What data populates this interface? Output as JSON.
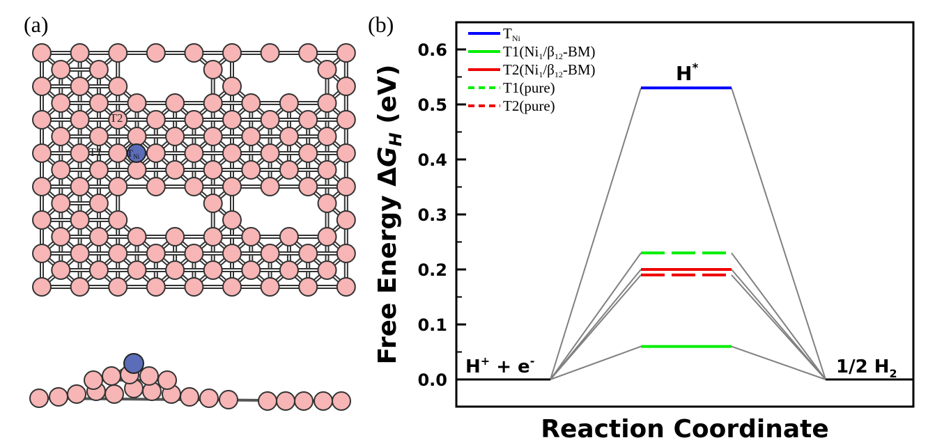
{
  "panels": {
    "a_label": "(a)",
    "b_label": "(b)"
  },
  "structure": {
    "site_T2": "T2",
    "site_T1": "T1",
    "site_TNi": "T",
    "site_TNi_sub": "Ni",
    "colors": {
      "boron": "#f7b5b5",
      "nickel": "#5b6cb8",
      "bond": "#333333"
    }
  },
  "chart_data": {
    "type": "energy-diagram",
    "ylabel_prefix": "Free Energy ",
    "ylabel_delta": "Δ",
    "ylabel_G": "G",
    "ylabel_sub": "H",
    "ylabel_unit": " (eV)",
    "xlabel": "Reaction Coordinate",
    "ylim": [
      0.0,
      0.65
    ],
    "yticks": [
      0.0,
      0.1,
      0.2,
      0.3,
      0.4,
      0.5,
      0.6
    ],
    "ytick_labels": [
      "0.0",
      "0.1",
      "0.2",
      "0.3",
      "0.4",
      "0.5",
      "0.6"
    ],
    "states": [
      "H⁺ + e⁻",
      "H*",
      "1/2 H₂"
    ],
    "state_labels": {
      "initial_main": "H",
      "initial_sup1": "+",
      "initial_mid": " + e",
      "initial_sup2": "-",
      "middle_main": "H",
      "middle_sup": "*",
      "final_main": "1/2 H",
      "final_sub": "2"
    },
    "series": [
      {
        "name": "T_Ni",
        "values": [
          0.0,
          0.53,
          0.0
        ],
        "color": "#0000ff",
        "dashed": false
      },
      {
        "name": "T1(Ni1/β12-BM)",
        "values": [
          0.0,
          0.06,
          0.0
        ],
        "color": "#00ee00",
        "dashed": false
      },
      {
        "name": "T2(Ni1/β12-BM)",
        "values": [
          0.0,
          0.2,
          0.0
        ],
        "color": "#ee0000",
        "dashed": false
      },
      {
        "name": "T1(pure)",
        "values": [
          0.0,
          0.23,
          0.0
        ],
        "color": "#00ee00",
        "dashed": true
      },
      {
        "name": "T2(pure)",
        "values": [
          0.0,
          0.19,
          0.0
        ],
        "color": "#ee0000",
        "dashed": true
      }
    ],
    "legend": {
      "placement": "top-left",
      "entries": [
        {
          "main": "T",
          "sub": "Ni",
          "color": "#0000ff",
          "dashed": false
        },
        {
          "main": "T1(Ni",
          "sub1": "1",
          "mid": "/β",
          "sub2": "12",
          "tail": "-BM)",
          "color": "#00ee00",
          "dashed": false
        },
        {
          "main": "T2(Ni",
          "sub1": "1",
          "mid": "/β",
          "sub2": "12",
          "tail": "-BM)",
          "color": "#ee0000",
          "dashed": false
        },
        {
          "main": "T1(pure)",
          "color": "#00ee00",
          "dashed": true
        },
        {
          "main": "T2(pure)",
          "color": "#ee0000",
          "dashed": true
        }
      ]
    },
    "connector_color": "#808080"
  }
}
